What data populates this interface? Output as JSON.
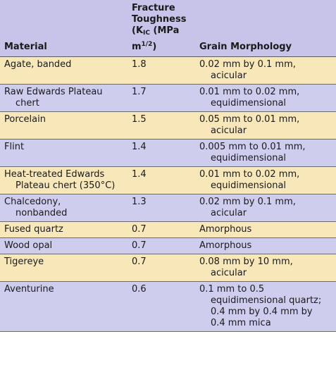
{
  "headers": {
    "material": "Material",
    "toughness_line1": "Fracture",
    "toughness_line2": "Toughness",
    "toughness_k": "(K",
    "toughness_k_sub": "IC",
    "toughness_unit": " (MPa",
    "toughness_m": "m",
    "toughness_m_sup": "1/2",
    "toughness_close": ")",
    "morphology": "Grain Morphology"
  },
  "rows": [
    {
      "material": [
        "Agate, banded"
      ],
      "toughness": "1.8",
      "morphology": [
        "0.02 mm by 0.1 mm,",
        "acicular"
      ]
    },
    {
      "material": [
        "Raw Edwards Plateau",
        "chert"
      ],
      "toughness": "1.7",
      "morphology": [
        "0.01 mm to 0.02 mm,",
        "equidimensional"
      ]
    },
    {
      "material": [
        "Porcelain"
      ],
      "toughness": "1.5",
      "morphology": [
        "0.05 mm to 0.01 mm,",
        "acicular"
      ]
    },
    {
      "material": [
        "Flint"
      ],
      "toughness": "1.4",
      "morphology": [
        "0.005 mm to 0.01 mm,",
        "equidimensional"
      ]
    },
    {
      "material": [
        "Heat-treated Edwards",
        "Plateau chert (350°C)"
      ],
      "toughness": "1.4",
      "morphology": [
        "0.01 mm to 0.02 mm,",
        "equidimensional"
      ]
    },
    {
      "material": [
        "Chalcedony,",
        "nonbanded"
      ],
      "toughness": "1.3",
      "morphology": [
        "0.02 mm by 0.1 mm,",
        "acicular"
      ]
    },
    {
      "material": [
        "Fused quartz"
      ],
      "toughness": "0.7",
      "morphology": [
        "Amorphous"
      ]
    },
    {
      "material": [
        "Wood opal"
      ],
      "toughness": "0.7",
      "morphology": [
        "Amorphous"
      ]
    },
    {
      "material": [
        "Tigereye"
      ],
      "toughness": "0.7",
      "morphology": [
        "0.08 mm by 10 mm,",
        "acicular"
      ]
    },
    {
      "material": [
        "Aventurine"
      ],
      "toughness": "0.6",
      "morphology": [
        "0.1 mm to 0.5",
        "equidimensional quartz;",
        "0.4 mm by 0.4 mm by",
        "0.4 mm mica"
      ]
    }
  ],
  "colors": {
    "header_bg": "#c7c3e9",
    "row_odd": "#f8e7b9",
    "row_even": "#cfcdee"
  }
}
